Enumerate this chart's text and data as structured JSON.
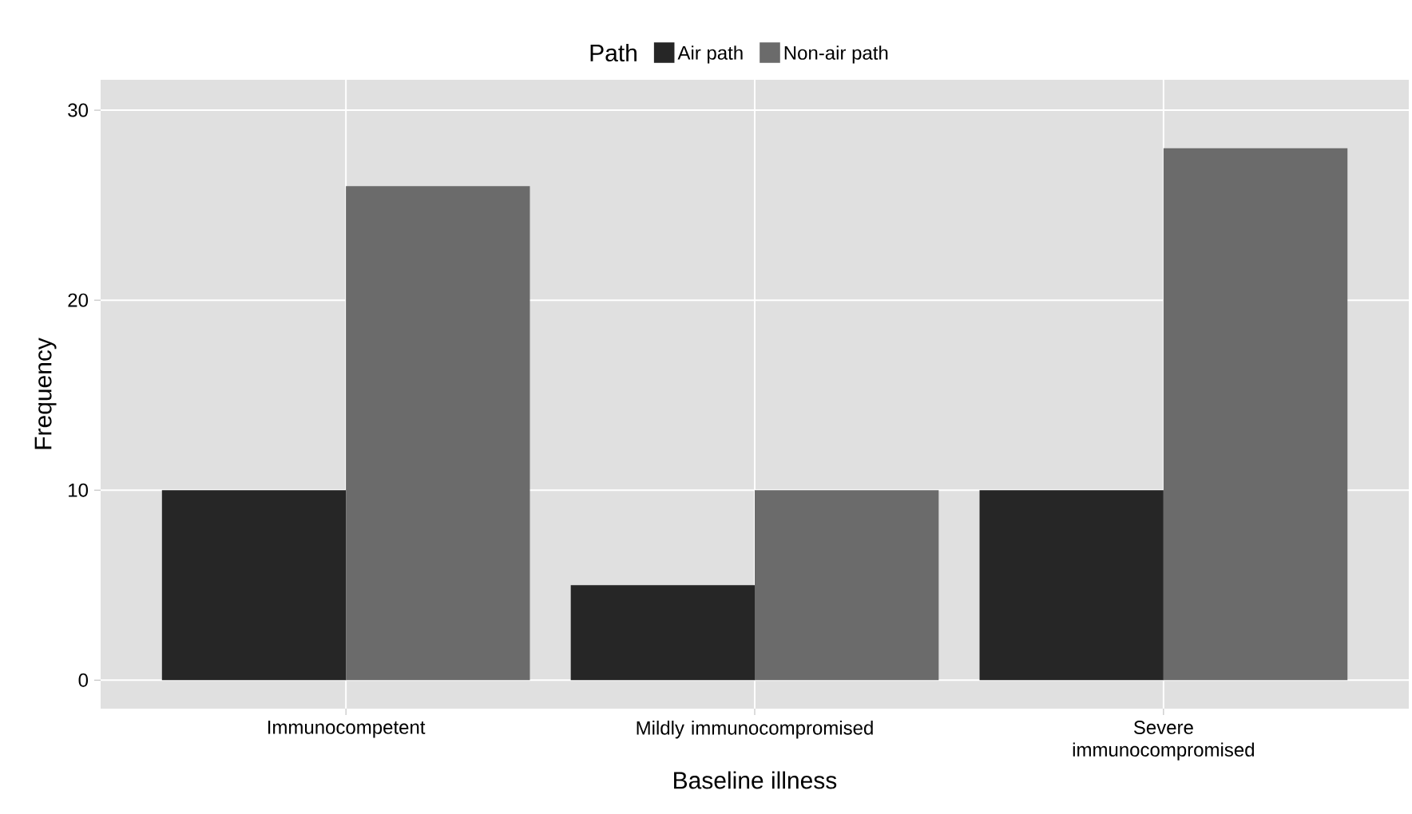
{
  "chart_data": {
    "type": "bar",
    "xlabel": "Baseline illness",
    "ylabel": "Frequency",
    "legend_title": "Path",
    "categories": [
      "Immunocompetent",
      "Mildly immunocompromised",
      "Severe immunocompromised"
    ],
    "series": [
      {
        "name": "Air path",
        "color": "#262626",
        "values": [
          10,
          5,
          10
        ]
      },
      {
        "name": "Non-air path",
        "color": "#6b6b6b",
        "values": [
          26,
          10,
          28
        ]
      }
    ],
    "ylim": [
      -1.5,
      31.6
    ],
    "yticks": [
      0,
      10,
      20,
      30
    ],
    "grid": true,
    "legend": "top"
  }
}
